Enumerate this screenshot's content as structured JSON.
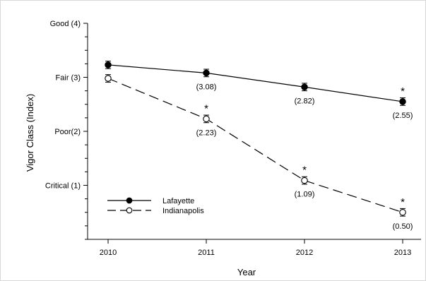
{
  "chart_data": {
    "type": "line",
    "xlabel": "Year",
    "ylabel": "Vigor Class (Index)",
    "x": [
      "2010",
      "2011",
      "2012",
      "2013"
    ],
    "y_ticks": [
      {
        "value": 4,
        "label": "Good (4)"
      },
      {
        "value": 3,
        "label": "Fair (3)"
      },
      {
        "value": 2,
        "label": "Poor(2)"
      },
      {
        "value": 1,
        "label": "Critical (1)"
      }
    ],
    "ylim": [
      0,
      4
    ],
    "series": [
      {
        "name": "Lafayette",
        "marker": "filled-circle",
        "line": "solid",
        "color": "#000000",
        "values": [
          3.23,
          3.08,
          2.82,
          2.55
        ],
        "errors": [
          0.07,
          0.07,
          0.07,
          0.07
        ],
        "labels": [
          "",
          "(3.08)",
          "(2.82)",
          "(2.55)"
        ],
        "significant": [
          false,
          false,
          false,
          true
        ]
      },
      {
        "name": "Indianapolis",
        "marker": "open-circle",
        "line": "dashed",
        "color": "#000000",
        "values": [
          2.98,
          2.23,
          1.09,
          0.5
        ],
        "errors": [
          0.07,
          0.07,
          0.07,
          0.07
        ],
        "labels": [
          "",
          "(2.23)",
          "(1.09)",
          "(0.50)"
        ],
        "significant": [
          false,
          true,
          true,
          true
        ]
      }
    ],
    "significance_marker": "*",
    "legend_position": "bottom-left",
    "grid": false
  }
}
